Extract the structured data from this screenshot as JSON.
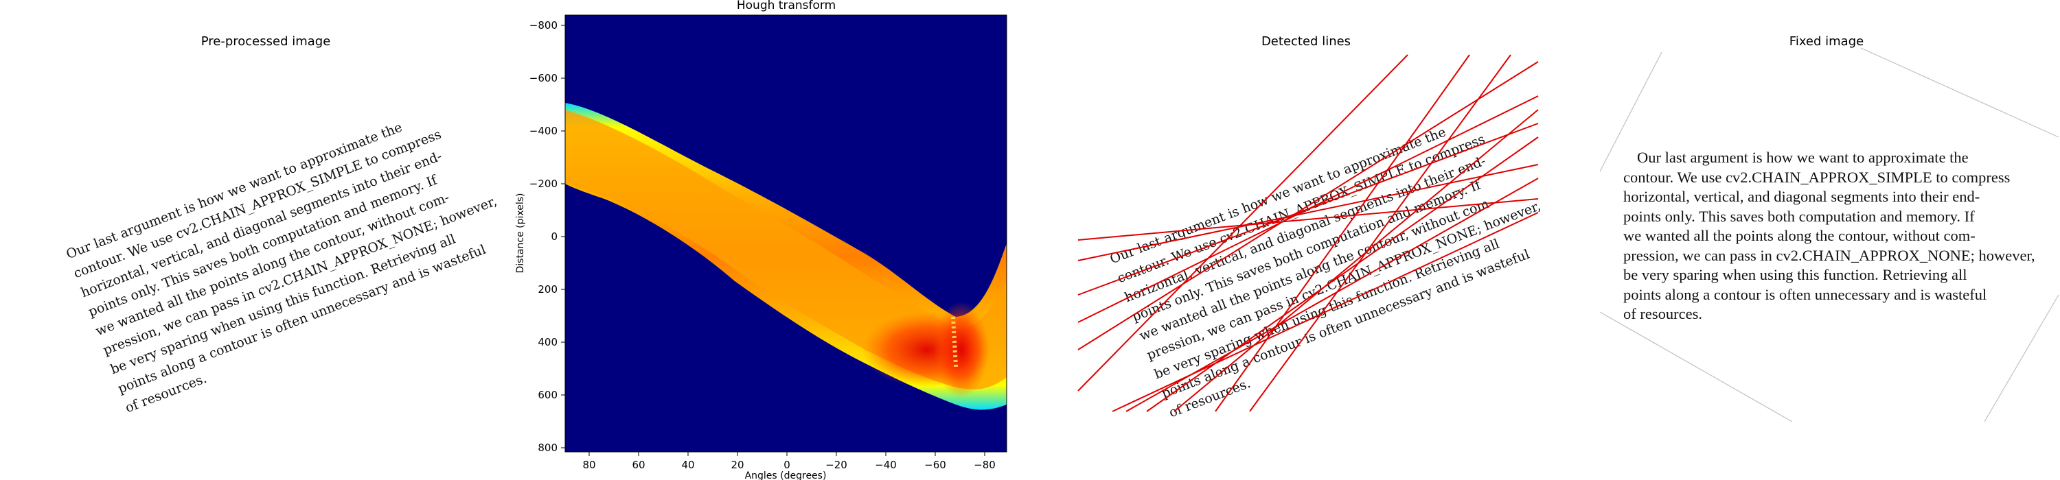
{
  "panels": {
    "preprocessed": {
      "title": "Pre-processed image"
    },
    "hough": {
      "title": "Hough transform",
      "xlabel": "Angles (degrees)",
      "ylabel": "Distance (pixels)",
      "xticks": [
        "80",
        "60",
        "40",
        "20",
        "0",
        "−20",
        "−40",
        "−60",
        "−80"
      ],
      "yticks": [
        "−800",
        "−600",
        "−400",
        "−200",
        "0",
        "200",
        "400",
        "600",
        "800"
      ]
    },
    "detected": {
      "title": "Detected lines"
    },
    "fixed": {
      "title": "Fixed image"
    }
  },
  "text_lines": [
    "Our last argument is how we want to approximate the",
    "contour.  We use cv2.CHAIN_APPROX_SIMPLE to compress",
    "horizontal, vertical, and diagonal segments into their end-",
    "points only.  This saves both computation and memory.  If",
    "we wanted all the points along the contour, without com-",
    "pression, we can pass in cv2.CHAIN_APPROX_NONE; however,",
    "be very sparing when using this function.  Retrieving all",
    "points along a contour is often unnecessary and is wasteful",
    "of resources."
  ],
  "fixed_text_lines": [
    "Our last argument is how we want to approximate the",
    "contour.  We use cv2.CHAIN_APPROX_SIMPLE to compress",
    "horizontal, vertical, and diagonal segments into their end-",
    "points only.  This saves both computation and memory.  If",
    "we wanted all the points along the contour, without com-",
    "pression, we can pass in cv2.CHAIN_APPROX_NONE; however,",
    "be very sparing when using this function.  Retrieving all",
    "points along a contour is often unnecessary and is wasteful",
    "of resources."
  ],
  "colors": {
    "hough_background": "#00007f",
    "detected_line": "#e00000"
  }
}
